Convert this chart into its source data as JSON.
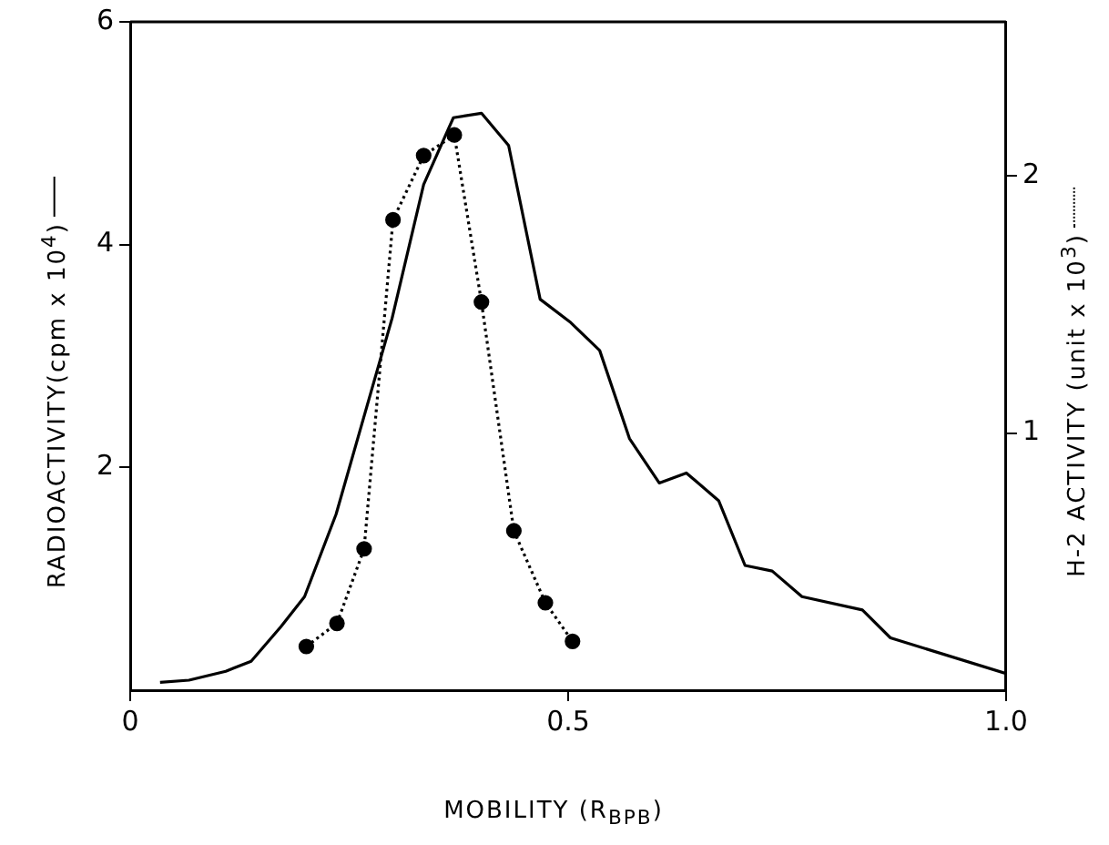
{
  "chart_data": {
    "type": "line",
    "xlabel": "MOBILITY  (R$_{BPB}$)",
    "ylabel": "RADIOACTIVITY(cpm x 10$^{4}$)",
    "y2label": "H-2  ACTIVITY (unit x 10$^{3}$)",
    "xlim": [
      0,
      1.0
    ],
    "xticks": [
      0,
      {
        "value": 0.5,
        "label": "0.5"
      },
      {
        "value": 1.0,
        "label": "1.0"
      }
    ],
    "ylim": [
      0,
      6
    ],
    "yticks": [
      2,
      4,
      6
    ],
    "y2lim": [
      0,
      2.6
    ],
    "y2ticks": [
      1,
      2
    ],
    "grid": false,
    "legend": false,
    "series": [
      {
        "color": "#000000",
        "marker": "none",
        "line_style": "solid",
        "x": [
          0.034,
          0.067,
          0.109,
          0.138,
          0.172,
          0.199,
          0.235,
          0.299,
          0.335,
          0.369,
          0.401,
          0.432,
          0.468,
          0.503,
          0.536,
          0.57,
          0.604,
          0.635,
          0.672,
          0.702,
          0.733,
          0.767,
          0.836,
          0.868,
          1.0
        ],
        "values": [
          0.07,
          0.09,
          0.17,
          0.26,
          0.57,
          0.84,
          1.58,
          3.34,
          4.54,
          5.14,
          5.18,
          4.89,
          3.51,
          3.3,
          3.05,
          2.26,
          1.86,
          1.95,
          1.7,
          1.12,
          1.07,
          0.84,
          0.72,
          0.47,
          0.15
        ]
      },
      {
        "color": "#000000",
        "marker": "circle",
        "line_style": "dotted",
        "axis": "y2",
        "x": [
          0.201,
          0.236,
          0.267,
          0.3,
          0.335,
          0.37,
          0.401,
          0.438,
          0.474,
          0.505
        ],
        "values": [
          0.17,
          0.26,
          0.55,
          1.83,
          2.08,
          2.16,
          1.51,
          0.62,
          0.34,
          0.19
        ]
      }
    ]
  }
}
